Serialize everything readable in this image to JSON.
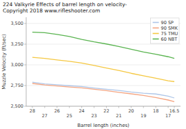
{
  "chart_data": {
    "type": "line",
    "title": "224 Valkyrie Effects of barrel length on velocity-\nCopyright 2018 www.rifleshooter.com",
    "x_label": "Barrel length (inches)",
    "y_label": "Muzzle Velocity (ft/sec)",
    "x": [
      28,
      27,
      26,
      25,
      24,
      23,
      22,
      21,
      20,
      19,
      18,
      17,
      16.5
    ],
    "series": [
      {
        "name": "90 SP",
        "color": "#aec6e8",
        "values": [
          2790,
          2770,
          2760,
          2748,
          2738,
          2720,
          2705,
          2690,
          2672,
          2658,
          2648,
          2622,
          2600
        ]
      },
      {
        "name": "90 SMK",
        "color": "#f4a582",
        "values": [
          2775,
          2758,
          2745,
          2732,
          2722,
          2705,
          2688,
          2668,
          2650,
          2630,
          2605,
          2575,
          2555
        ]
      },
      {
        "name": "75 TMU",
        "color": "#f5c842",
        "values": [
          3090,
          3078,
          3060,
          3042,
          3022,
          2992,
          2962,
          2932,
          2898,
          2868,
          2838,
          2808,
          2798
        ]
      },
      {
        "name": "60 NBT",
        "color": "#5ab450",
        "values": [
          3395,
          3388,
          3368,
          3342,
          3308,
          3278,
          3252,
          3222,
          3188,
          3155,
          3128,
          3098,
          3078
        ]
      }
    ],
    "xlim": [
      28.5,
      16.0
    ],
    "xticks": [
      28,
      27,
      26,
      25,
      24,
      23,
      22,
      21,
      20,
      19,
      18,
      17,
      16.5
    ],
    "ylim": [
      2500,
      3575
    ],
    "yticks": [
      {
        "value": 2500,
        "label": "2,500"
      },
      {
        "value": 2750,
        "label": "2,750"
      },
      {
        "value": 3000,
        "label": "3,000"
      },
      {
        "value": 3250,
        "label": "3,250"
      },
      {
        "value": 3500,
        "label": "3,500"
      }
    ],
    "grid": true,
    "legend": "upper right"
  }
}
